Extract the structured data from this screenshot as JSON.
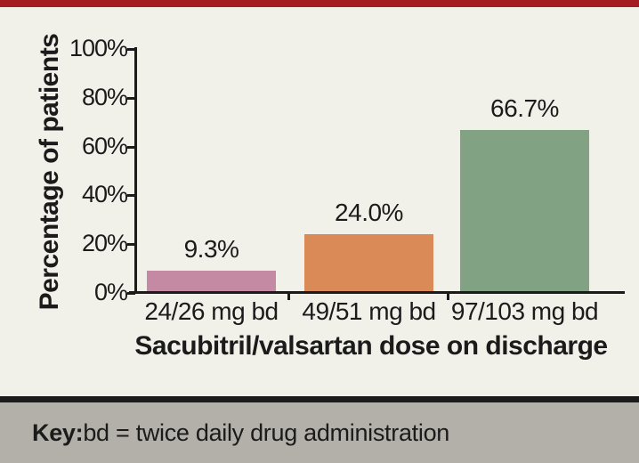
{
  "chart_data": {
    "type": "bar",
    "title": "",
    "categories": [
      "24/26 mg bd",
      "49/51 mg bd",
      "97/103 mg bd"
    ],
    "values": [
      9.3,
      24.0,
      66.7
    ],
    "value_labels": [
      "9.3%",
      "24.0%",
      "66.7%"
    ],
    "bar_colors": [
      "#c48aa4",
      "#d98a56",
      "#81a283"
    ],
    "xlabel": "Sacubitril/valsartan dose on discharge",
    "ylabel": "Percentage of patients",
    "ylim": [
      0,
      100
    ],
    "yticks": [
      {
        "value": 100,
        "label": "100%"
      },
      {
        "value": 80,
        "label": "80%"
      },
      {
        "value": 60,
        "label": "60%"
      },
      {
        "value": 40,
        "label": "40%"
      },
      {
        "value": 20,
        "label": "20%"
      },
      {
        "value": 0,
        "label": "0%"
      }
    ],
    "grid": false,
    "legend": "none"
  },
  "footer": {
    "key_label": "Key:",
    "key_text": " bd = twice daily drug administration"
  },
  "colors": {
    "background": "#f1f1ea",
    "top_rule": "#a31d21",
    "separator": "#1b1b1b",
    "footer_bg": "#b3b0a9",
    "text": "#1b1b1b"
  }
}
